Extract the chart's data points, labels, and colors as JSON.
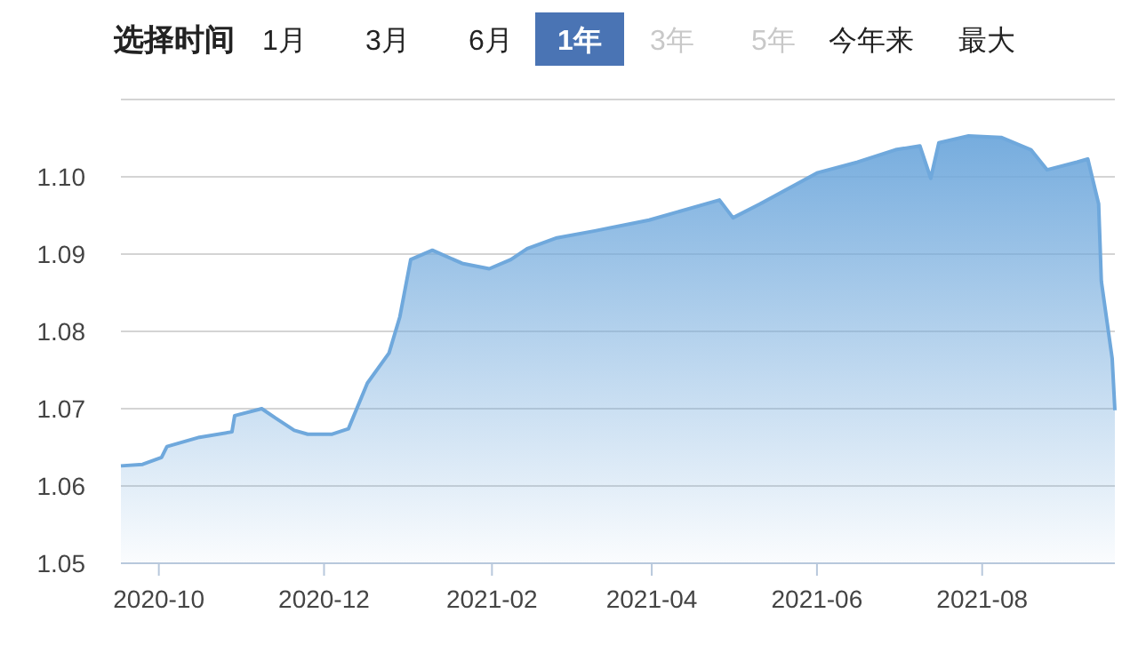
{
  "chart_data": {
    "type": "area",
    "annotations": [
      "选择时间",
      "1月",
      "3月",
      "6月",
      "1年",
      "3年",
      "5年",
      "今年来",
      "最大"
    ],
    "x": [
      "2020-09-17",
      "2020-09-25",
      "2020-10-02",
      "2020-10-04",
      "2020-10-16",
      "2020-10-28",
      "2020-10-29",
      "2020-11-08",
      "2020-11-13",
      "2020-11-20",
      "2020-11-25",
      "2020-12-04",
      "2020-12-10",
      "2020-12-17",
      "2020-12-25",
      "2020-12-29",
      "2021-01-02",
      "2021-01-10",
      "2021-01-21",
      "2021-01-31",
      "2021-02-08",
      "2021-02-14",
      "2021-02-25",
      "2021-03-11",
      "2021-03-31",
      "2021-04-26",
      "2021-05-01",
      "2021-05-11",
      "2021-06-01",
      "2021-06-16",
      "2021-06-30",
      "2021-07-09",
      "2021-07-13",
      "2021-07-16",
      "2021-07-27",
      "2021-08-08",
      "2021-08-19",
      "2021-08-25",
      "2021-09-05",
      "2021-09-09",
      "2021-09-13",
      "2021-09-14",
      "2021-09-18",
      "2021-09-19"
    ],
    "series": [
      {
        "color": "#6fa8dc",
        "values": [
          1.0626,
          1.0628,
          1.0637,
          1.0651,
          1.0663,
          1.067,
          1.0691,
          1.07,
          1.0688,
          1.0672,
          1.0667,
          1.0667,
          1.0674,
          1.0733,
          1.0772,
          1.0819,
          1.0893,
          1.0905,
          1.0888,
          1.0881,
          1.0893,
          1.0907,
          1.0921,
          1.093,
          1.0944,
          1.097,
          1.0947,
          1.0965,
          1.1005,
          1.1019,
          1.1035,
          1.104,
          1.0998,
          1.1044,
          1.1053,
          1.1051,
          1.1035,
          1.1009,
          1.1019,
          1.1023,
          1.0965,
          1.0865,
          1.0765,
          1.0698
        ]
      }
    ],
    "xlim": [
      "2020-09-17",
      "2021-09-19"
    ],
    "xticks": [
      {
        "value": "2020-10-01",
        "label": "2020-10"
      },
      {
        "value": "2020-12-01",
        "label": "2020-12"
      },
      {
        "value": "2021-02-01",
        "label": "2021-02"
      },
      {
        "value": "2021-04-01",
        "label": "2021-04"
      },
      {
        "value": "2021-06-01",
        "label": "2021-06"
      },
      {
        "value": "2021-08-01",
        "label": "2021-08"
      }
    ],
    "ylim": [
      1.05,
      1.11
    ],
    "yticks": [
      {
        "value": 1.05,
        "label": "1.05"
      },
      {
        "value": 1.06,
        "label": "1.06"
      },
      {
        "value": 1.07,
        "label": "1.07"
      },
      {
        "value": 1.08,
        "label": "1.08"
      },
      {
        "value": 1.09,
        "label": "1.09"
      },
      {
        "value": 1.1,
        "label": "1.10"
      },
      {
        "value": 1.11,
        "label": null
      }
    ],
    "grid": "y"
  }
}
